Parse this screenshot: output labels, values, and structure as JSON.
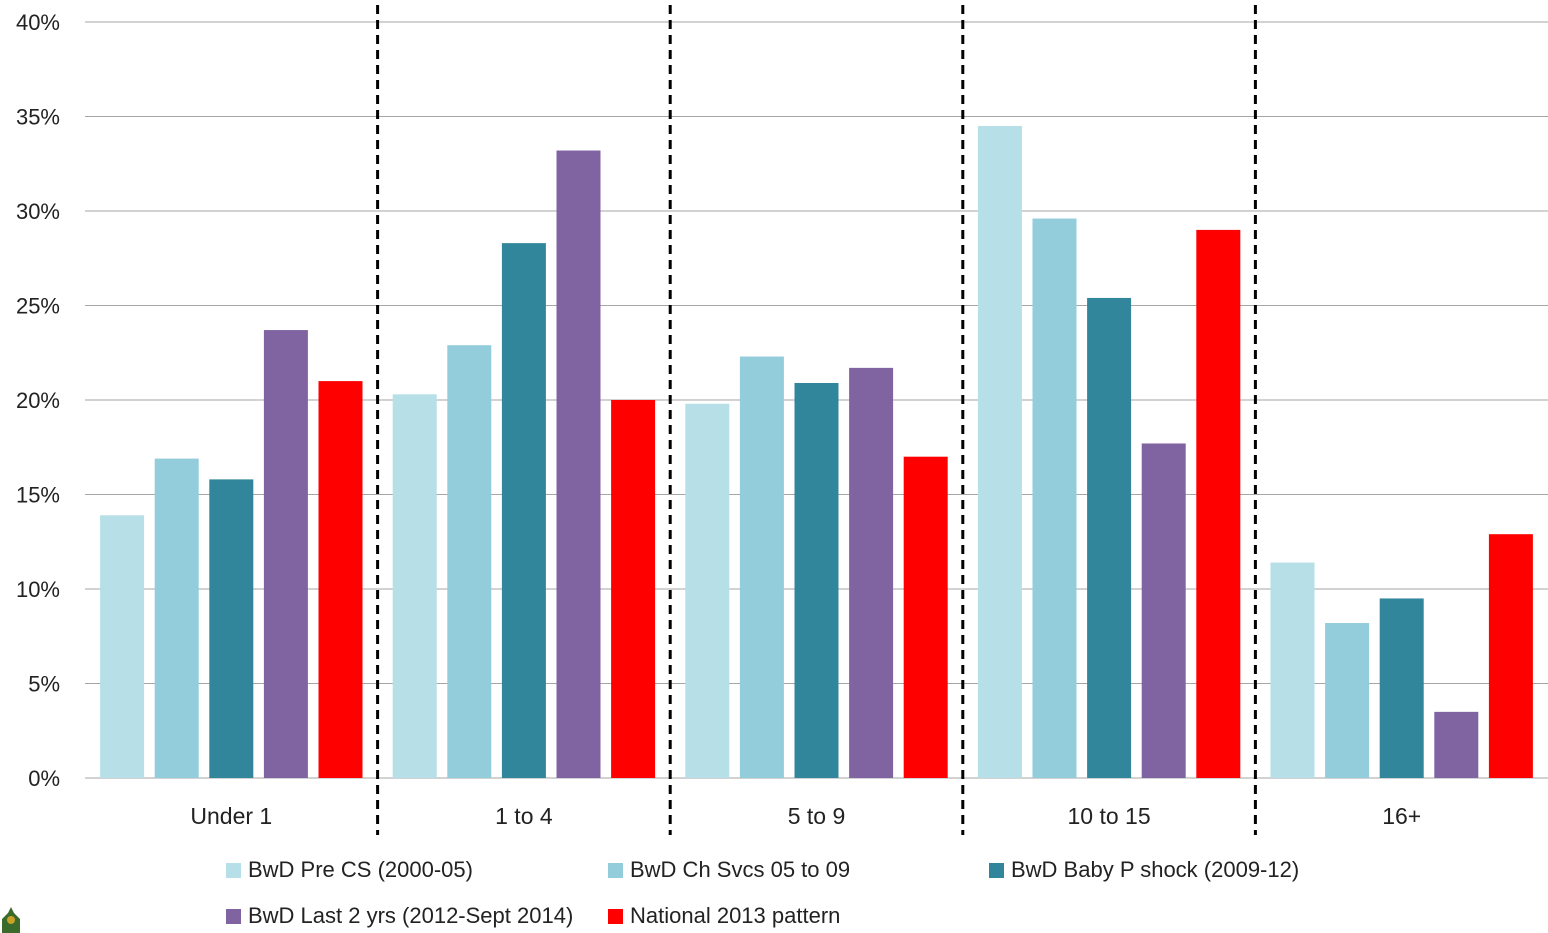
{
  "chart_data": {
    "type": "bar",
    "title": "",
    "xlabel": "",
    "ylabel": "",
    "ylim": [
      0,
      40
    ],
    "yticks": [
      "0%",
      "5%",
      "10%",
      "15%",
      "20%",
      "25%",
      "30%",
      "35%",
      "40%"
    ],
    "grid": true,
    "legend_position": "bottom",
    "categories": [
      "Under 1",
      "1 to 4",
      "5 to 9",
      "10 to 15",
      "16+"
    ],
    "series": [
      {
        "name": "BwD Pre CS (2000-05)",
        "color": "#b7dfe7",
        "values": [
          13.9,
          20.3,
          19.8,
          34.5,
          11.4
        ]
      },
      {
        "name": "BwD Ch Svcs 05 to 09",
        "color": "#93cddc",
        "values": [
          16.9,
          22.9,
          22.3,
          29.6,
          8.2
        ]
      },
      {
        "name": "BwD Baby P shock (2009-12)",
        "color": "#31869b",
        "values": [
          15.8,
          28.3,
          20.9,
          25.4,
          9.5
        ]
      },
      {
        "name": "BwD Last 2 yrs (2012-Sept 2014)",
        "color": "#8064a2",
        "values": [
          23.7,
          33.2,
          21.7,
          17.7,
          3.5
        ]
      },
      {
        "name": "National 2013 pattern",
        "color": "#ff0000",
        "values": [
          21.0,
          20.0,
          17.0,
          29.0,
          12.9
        ]
      }
    ]
  }
}
